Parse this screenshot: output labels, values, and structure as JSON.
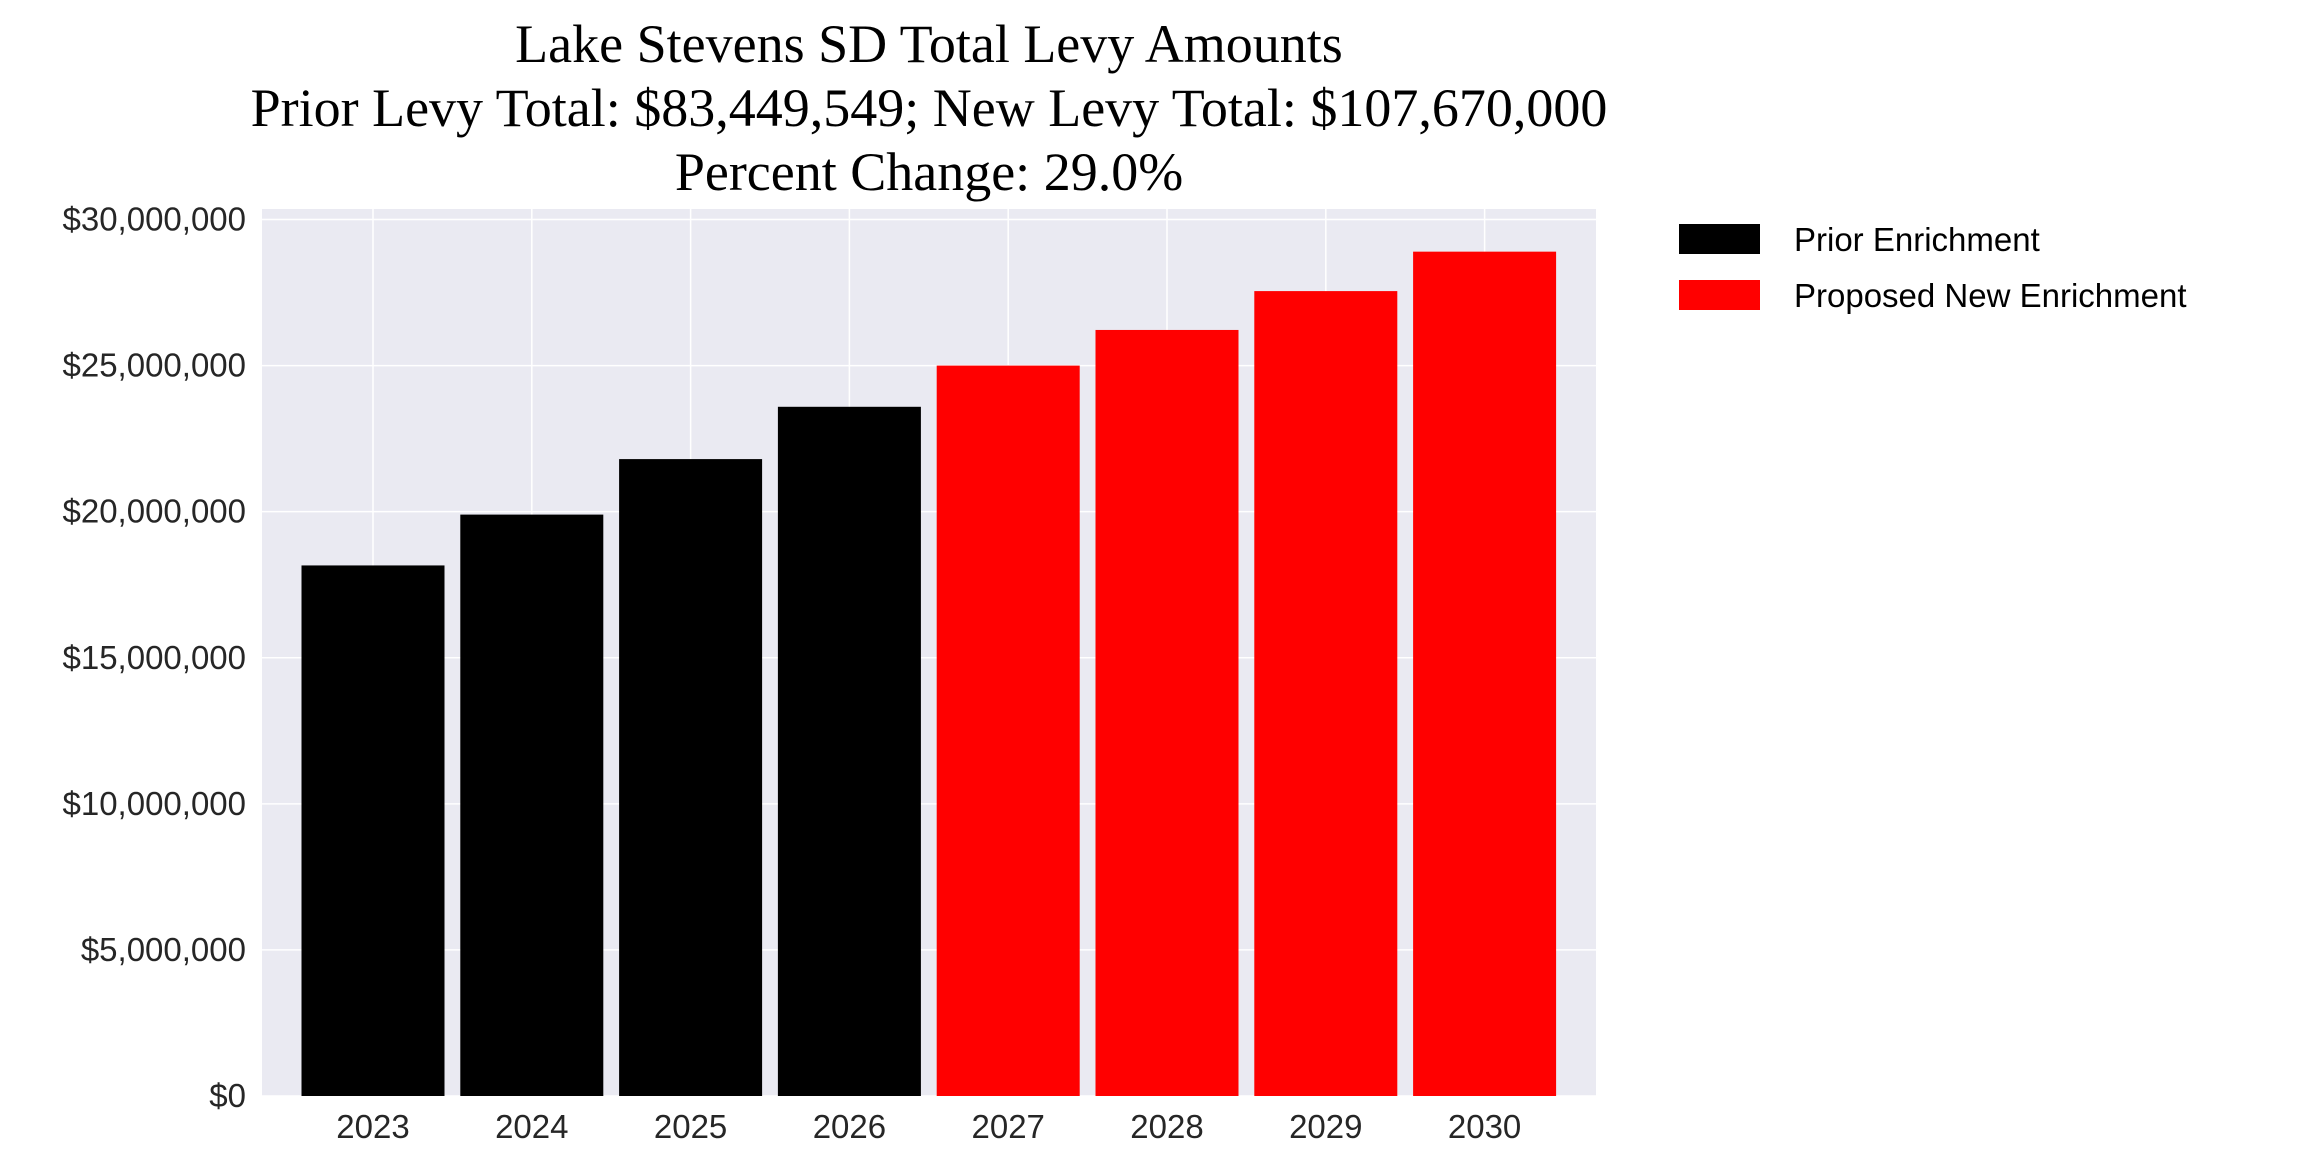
{
  "chart_data": {
    "type": "bar",
    "title": [
      "Lake Stevens SD Total Levy Amounts",
      "Prior Levy Total:  $83,449,549; New Levy Total: $107,670,000",
      "Percent Change: 29.0%"
    ],
    "xlabel": "",
    "ylabel": "",
    "categories": [
      "2023",
      "2024",
      "2025",
      "2026",
      "2027",
      "2028",
      "2029",
      "2030"
    ],
    "series": [
      {
        "name": "Prior Enrichment",
        "color": "#000000",
        "values": [
          18160000,
          19900000,
          21800000,
          23590000,
          null,
          null,
          null,
          null
        ]
      },
      {
        "name": "Proposed New Enrichment",
        "color": "#ff0000",
        "values": [
          null,
          null,
          null,
          null,
          25000000,
          26220000,
          27550000,
          28900000
        ]
      }
    ],
    "ylim": [
      0,
      30360000
    ],
    "yticks": [
      0,
      5000000,
      10000000,
      15000000,
      20000000,
      25000000,
      30000000
    ],
    "ytick_labels": [
      "$0",
      "$5,000,000",
      "$10,000,000",
      "$15,000,000",
      "$20,000,000",
      "$25,000,000",
      "$30,000,000"
    ],
    "grid": true,
    "background": "#eaeaf2",
    "legend_position": "outside-top-right"
  }
}
